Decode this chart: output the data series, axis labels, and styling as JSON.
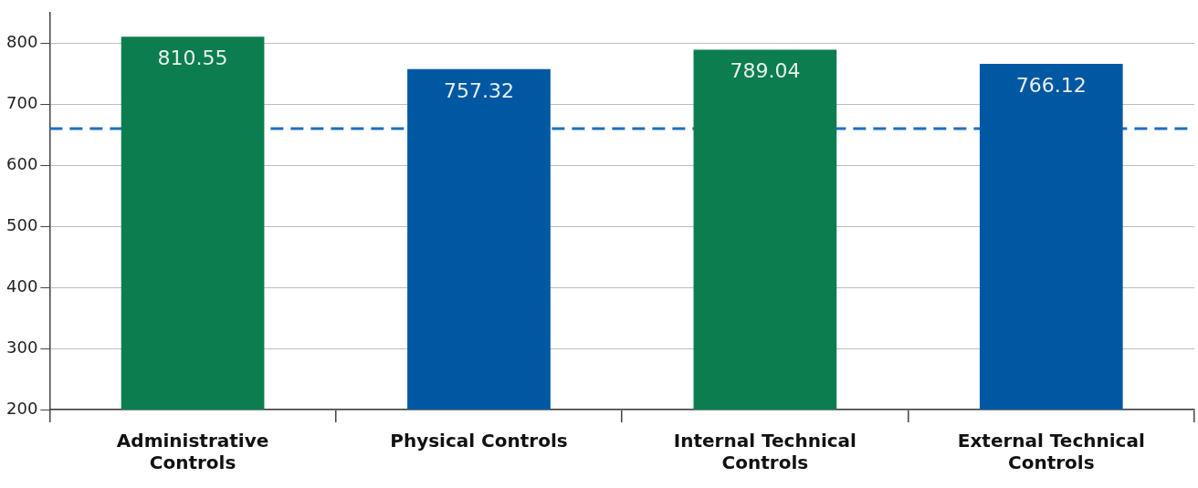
{
  "chart_data": {
    "type": "bar",
    "categories": [
      "Administrative Controls",
      "Physical Controls",
      "Internal Technical Controls",
      "External Technical Controls"
    ],
    "values": [
      810.55,
      757.32,
      789.04,
      766.12
    ],
    "colors": [
      "#0b7d4f",
      "#0058a3",
      "#0b7d4f",
      "#0058a3"
    ],
    "ylim": [
      200,
      850
    ],
    "yticks": [
      200,
      300,
      400,
      500,
      600,
      700,
      800
    ],
    "grid": "y",
    "data_labels": true,
    "legend": false,
    "ref_lines": [
      {
        "axis": "y",
        "value": 660,
        "color": "#1f6fbf",
        "line_style": "dashed"
      }
    ]
  }
}
